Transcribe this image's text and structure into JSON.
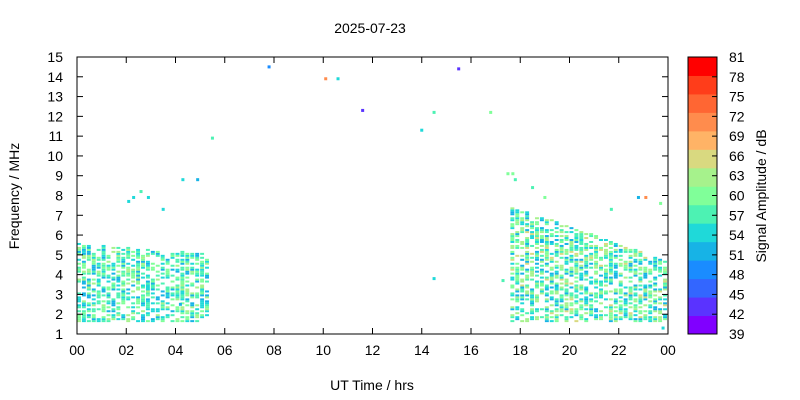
{
  "chart_data": {
    "type": "heatmap",
    "title": "2025-07-23",
    "xlabel": "UT Time / hrs",
    "ylabel": "Frequency / MHz",
    "colorbar_label": "Signal Amplitude / dB",
    "xlim": [
      0,
      24
    ],
    "ylim": [
      1,
      15
    ],
    "x_ticks": [
      "00",
      "02",
      "04",
      "06",
      "08",
      "10",
      "12",
      "14",
      "16",
      "18",
      "20",
      "22",
      "00"
    ],
    "y_ticks": [
      "1",
      "2",
      "3",
      "4",
      "5",
      "6",
      "7",
      "8",
      "9",
      "10",
      "11",
      "12",
      "13",
      "14",
      "15"
    ],
    "colorbar_range": [
      39,
      81
    ],
    "colorbar_ticks": [
      "39",
      "42",
      "45",
      "48",
      "51",
      "54",
      "57",
      "60",
      "63",
      "66",
      "69",
      "72",
      "75",
      "78",
      "81"
    ],
    "colorbar_colors": [
      "#8000ff",
      "#5a33ff",
      "#3366ff",
      "#1a8cff",
      "#17b3e6",
      "#1fd9d9",
      "#4df2b3",
      "#80ff99",
      "#a6f28c",
      "#d9d980",
      "#ffb366",
      "#ff8c4d",
      "#ff6633",
      "#ff3d1a",
      "#ff0000"
    ],
    "grid": false,
    "grid_step": {
      "time_hrs": 0.2,
      "freq_mhz": 0.1
    },
    "regions": [
      {
        "t_start": 0.0,
        "t_end": 5.4,
        "f_low": 1.6,
        "f_high_start": 5.5,
        "f_high_end": 5.0,
        "amp_mean": 57,
        "amp_spread": 6
      },
      {
        "t_start": 17.6,
        "t_end": 24.0,
        "f_low": 1.6,
        "f_high_start": 7.4,
        "f_high_end": 4.6,
        "amp_mean": 58,
        "amp_spread": 7
      }
    ],
    "points": [
      {
        "t": 2.1,
        "f": 7.7,
        "amp": 55
      },
      {
        "t": 2.3,
        "f": 7.9,
        "amp": 55
      },
      {
        "t": 2.6,
        "f": 8.2,
        "amp": 57
      },
      {
        "t": 2.9,
        "f": 7.9,
        "amp": 55
      },
      {
        "t": 3.5,
        "f": 7.3,
        "amp": 55
      },
      {
        "t": 4.3,
        "f": 8.8,
        "amp": 54
      },
      {
        "t": 4.9,
        "f": 8.8,
        "amp": 52
      },
      {
        "t": 4.2,
        "f": 2.5,
        "amp": 51
      },
      {
        "t": 5.5,
        "f": 10.9,
        "amp": 57
      },
      {
        "t": 7.8,
        "f": 14.5,
        "amp": 48
      },
      {
        "t": 10.1,
        "f": 13.9,
        "amp": 72
      },
      {
        "t": 10.6,
        "f": 13.9,
        "amp": 55
      },
      {
        "t": 11.6,
        "f": 12.3,
        "amp": 42
      },
      {
        "t": 14.0,
        "f": 11.3,
        "amp": 55
      },
      {
        "t": 14.5,
        "f": 12.2,
        "amp": 57
      },
      {
        "t": 14.5,
        "f": 3.8,
        "amp": 55
      },
      {
        "t": 15.5,
        "f": 14.4,
        "amp": 42
      },
      {
        "t": 16.8,
        "f": 12.2,
        "amp": 60
      },
      {
        "t": 17.5,
        "f": 9.1,
        "amp": 60
      },
      {
        "t": 17.7,
        "f": 9.1,
        "amp": 60
      },
      {
        "t": 17.8,
        "f": 8.8,
        "amp": 58
      },
      {
        "t": 18.5,
        "f": 8.4,
        "amp": 58
      },
      {
        "t": 19.0,
        "f": 7.9,
        "amp": 60
      },
      {
        "t": 17.3,
        "f": 3.7,
        "amp": 57
      },
      {
        "t": 21.7,
        "f": 7.3,
        "amp": 58
      },
      {
        "t": 22.8,
        "f": 7.9,
        "amp": 52
      },
      {
        "t": 23.1,
        "f": 7.9,
        "amp": 72
      },
      {
        "t": 23.7,
        "f": 7.6,
        "amp": 60
      },
      {
        "t": 23.8,
        "f": 1.3,
        "amp": 54
      }
    ]
  }
}
